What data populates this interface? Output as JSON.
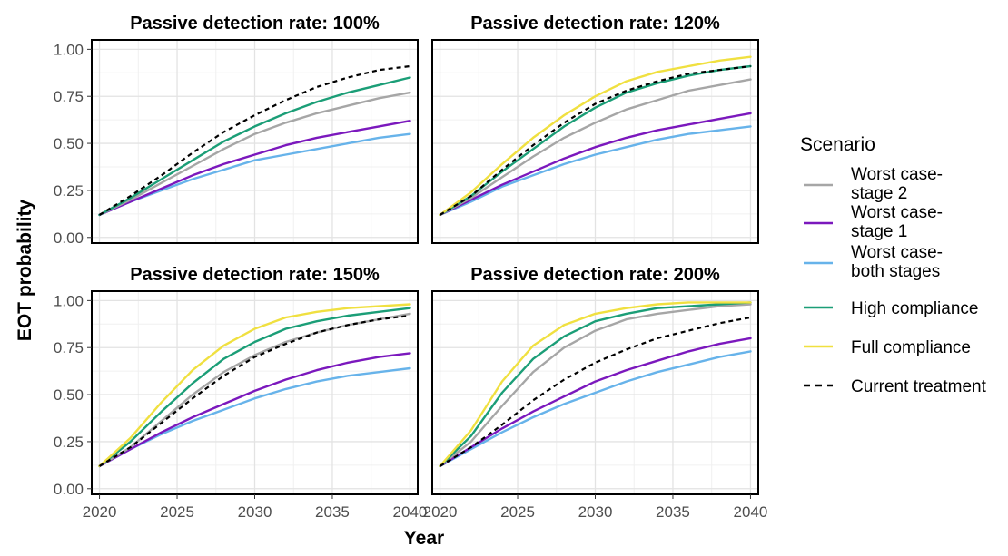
{
  "figure": {
    "xlabel": "Year",
    "ylabel": "EOT probability",
    "legend_title": "Scenario"
  },
  "legend": {
    "placement": "right",
    "items": [
      {
        "key": "wc2",
        "lines": [
          "Worst case-",
          "stage 2"
        ],
        "color": "#a6a6a6",
        "dashed": false
      },
      {
        "key": "wc1",
        "lines": [
          "Worst case-",
          "stage 1"
        ],
        "color": "#7b18bd",
        "dashed": false
      },
      {
        "key": "wcb",
        "lines": [
          "Worst case-",
          "both stages"
        ],
        "color": "#67b3ea",
        "dashed": false
      },
      {
        "key": "high",
        "lines": [
          "High compliance"
        ],
        "color": "#1b9e77",
        "dashed": false
      },
      {
        "key": "full",
        "lines": [
          "Full compliance"
        ],
        "color": "#f0e040",
        "dashed": false
      },
      {
        "key": "cur",
        "lines": [
          "Current treatment"
        ],
        "color": "#000000",
        "dashed": true
      }
    ]
  },
  "chart_data": {
    "type": "line",
    "x_ticks": [
      2020,
      2025,
      2030,
      2035,
      2040
    ],
    "y_ticks": [
      "0.00",
      "0.25",
      "0.50",
      "0.75",
      "1.00"
    ],
    "y_tick_values": [
      0,
      0.25,
      0.5,
      0.75,
      1.0
    ],
    "xlim": [
      2019.5,
      2040.5
    ],
    "ylim": [
      -0.03,
      1.05
    ],
    "grid": true,
    "panels": [
      {
        "title": "Passive detection rate: 100%",
        "x": [
          2020,
          2022,
          2024,
          2026,
          2028,
          2030,
          2032,
          2034,
          2036,
          2038,
          2040
        ],
        "series": [
          {
            "key": "wc2",
            "values": [
              0.12,
              0.2,
              0.29,
              0.38,
              0.47,
              0.55,
              0.61,
              0.66,
              0.7,
              0.74,
              0.77
            ]
          },
          {
            "key": "wc1",
            "values": [
              0.12,
              0.19,
              0.26,
              0.33,
              0.39,
              0.44,
              0.49,
              0.53,
              0.56,
              0.59,
              0.62
            ]
          },
          {
            "key": "wcb",
            "values": [
              0.12,
              0.19,
              0.25,
              0.31,
              0.36,
              0.41,
              0.44,
              0.47,
              0.5,
              0.53,
              0.55
            ]
          },
          {
            "key": "high",
            "values": [
              0.12,
              0.21,
              0.31,
              0.41,
              0.51,
              0.59,
              0.66,
              0.72,
              0.77,
              0.81,
              0.85
            ]
          },
          {
            "key": "cur",
            "values": [
              0.12,
              0.22,
              0.33,
              0.45,
              0.56,
              0.65,
              0.73,
              0.8,
              0.85,
              0.89,
              0.91
            ]
          }
        ]
      },
      {
        "title": "Passive detection rate: 120%",
        "x": [
          2020,
          2022,
          2024,
          2026,
          2028,
          2030,
          2032,
          2034,
          2036,
          2038,
          2040
        ],
        "series": [
          {
            "key": "wc2",
            "values": [
              0.12,
              0.21,
              0.32,
              0.43,
              0.53,
              0.61,
              0.68,
              0.73,
              0.78,
              0.81,
              0.84
            ]
          },
          {
            "key": "wc1",
            "values": [
              0.12,
              0.2,
              0.28,
              0.35,
              0.42,
              0.48,
              0.53,
              0.57,
              0.6,
              0.63,
              0.66
            ]
          },
          {
            "key": "wcb",
            "values": [
              0.12,
              0.19,
              0.27,
              0.33,
              0.39,
              0.44,
              0.48,
              0.52,
              0.55,
              0.57,
              0.59
            ]
          },
          {
            "key": "high",
            "values": [
              0.12,
              0.22,
              0.35,
              0.47,
              0.59,
              0.69,
              0.77,
              0.82,
              0.86,
              0.89,
              0.91
            ]
          },
          {
            "key": "full",
            "values": [
              0.12,
              0.24,
              0.39,
              0.53,
              0.65,
              0.75,
              0.83,
              0.88,
              0.91,
              0.94,
              0.96
            ]
          },
          {
            "key": "cur",
            "values": [
              0.12,
              0.22,
              0.36,
              0.49,
              0.61,
              0.71,
              0.78,
              0.83,
              0.87,
              0.89,
              0.91
            ]
          }
        ]
      },
      {
        "title": "Passive detection rate: 150%",
        "x": [
          2020,
          2022,
          2024,
          2026,
          2028,
          2030,
          2032,
          2034,
          2036,
          2038,
          2040
        ],
        "series": [
          {
            "key": "wc2",
            "values": [
              0.12,
              0.22,
              0.36,
              0.5,
              0.62,
              0.71,
              0.78,
              0.83,
              0.87,
              0.9,
              0.93
            ]
          },
          {
            "key": "wc1",
            "values": [
              0.12,
              0.21,
              0.3,
              0.38,
              0.45,
              0.52,
              0.58,
              0.63,
              0.67,
              0.7,
              0.72
            ]
          },
          {
            "key": "wcb",
            "values": [
              0.12,
              0.21,
              0.29,
              0.36,
              0.42,
              0.48,
              0.53,
              0.57,
              0.6,
              0.62,
              0.64
            ]
          },
          {
            "key": "high",
            "values": [
              0.12,
              0.25,
              0.41,
              0.56,
              0.69,
              0.78,
              0.85,
              0.89,
              0.92,
              0.94,
              0.96
            ]
          },
          {
            "key": "full",
            "values": [
              0.12,
              0.27,
              0.46,
              0.63,
              0.76,
              0.85,
              0.91,
              0.94,
              0.96,
              0.97,
              0.98
            ]
          },
          {
            "key": "cur",
            "values": [
              0.12,
              0.22,
              0.35,
              0.48,
              0.6,
              0.7,
              0.77,
              0.83,
              0.87,
              0.9,
              0.92
            ]
          }
        ]
      },
      {
        "title": "Passive detection rate: 200%",
        "x": [
          2020,
          2022,
          2024,
          2026,
          2028,
          2030,
          2032,
          2034,
          2036,
          2038,
          2040
        ],
        "series": [
          {
            "key": "wc2",
            "values": [
              0.12,
              0.25,
              0.44,
              0.62,
              0.75,
              0.84,
              0.9,
              0.93,
              0.95,
              0.97,
              0.98
            ]
          },
          {
            "key": "wc1",
            "values": [
              0.12,
              0.22,
              0.32,
              0.41,
              0.49,
              0.57,
              0.63,
              0.68,
              0.73,
              0.77,
              0.8
            ]
          },
          {
            "key": "wcb",
            "values": [
              0.12,
              0.21,
              0.3,
              0.38,
              0.45,
              0.51,
              0.57,
              0.62,
              0.66,
              0.7,
              0.73
            ]
          },
          {
            "key": "high",
            "values": [
              0.12,
              0.28,
              0.51,
              0.69,
              0.81,
              0.89,
              0.93,
              0.96,
              0.97,
              0.98,
              0.99
            ]
          },
          {
            "key": "full",
            "values": [
              0.12,
              0.31,
              0.57,
              0.76,
              0.87,
              0.93,
              0.96,
              0.98,
              0.99,
              0.99,
              0.99
            ]
          },
          {
            "key": "cur",
            "values": [
              0.12,
              0.22,
              0.34,
              0.47,
              0.58,
              0.67,
              0.74,
              0.8,
              0.84,
              0.88,
              0.91
            ]
          }
        ]
      }
    ]
  }
}
